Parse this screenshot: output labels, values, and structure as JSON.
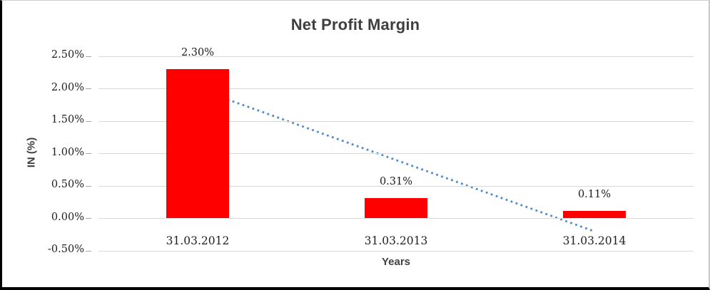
{
  "chart_data": {
    "type": "bar",
    "title": "Net Profit Margin",
    "xlabel": "Years",
    "ylabel": "IN (%)",
    "categories": [
      "31.03.2012",
      "31.03.2013",
      "31.03.2014"
    ],
    "values": [
      2.3,
      0.31,
      0.11
    ],
    "data_labels": [
      "2.30%",
      "0.31%",
      "0.11%"
    ],
    "y_tick_labels": [
      "2.50%",
      "2.00%",
      "1.50%",
      "1.00%",
      "0.50%",
      "0.00%",
      "-0.50%"
    ],
    "ylim": [
      -0.5,
      2.5
    ],
    "grid": "horizontal",
    "legend": "none",
    "bar_color": "#ff0000",
    "trendline": {
      "type": "linear",
      "style": "dotted",
      "color": "#4f8bc9",
      "start_value": 2.0,
      "end_value": -0.2
    },
    "colors": {
      "gridline": "#d9d9d9",
      "tick_mark": "#a6a6a6",
      "title_text": "#3f3f3f",
      "label_text": "#1f1f1f"
    }
  }
}
